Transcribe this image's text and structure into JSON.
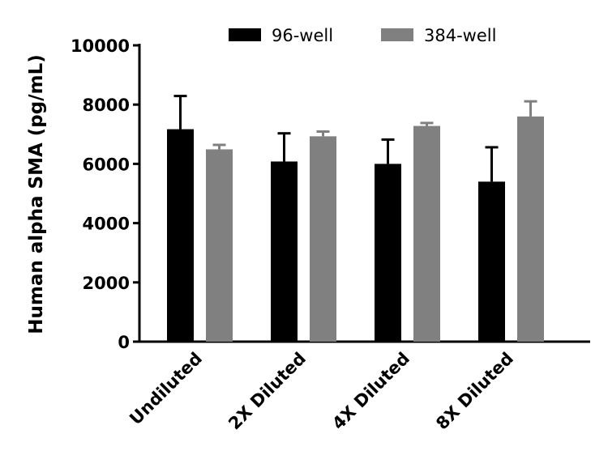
{
  "chart_data": {
    "type": "bar",
    "title": "",
    "xlabel": "",
    "ylabel": "Human alpha SMA (pg/mL)",
    "ylim": [
      0,
      10000
    ],
    "yticks": [
      "0",
      "2000",
      "4000",
      "6000",
      "8000",
      "10000"
    ],
    "categories": [
      "Undiluted",
      "2X Diluted",
      "4X Diluted",
      "8X Diluted"
    ],
    "legend_position": "top",
    "grid": false,
    "series": [
      {
        "name": "96-well",
        "color": "#000000",
        "values": [
          7170,
          6080,
          6000,
          5400
        ],
        "error_upper": [
          8290,
          7030,
          6820,
          6560
        ]
      },
      {
        "name": "384-well",
        "color": "#808080",
        "values": [
          6490,
          6930,
          7280,
          7600
        ],
        "error_upper": [
          6640,
          7090,
          7380,
          8110
        ]
      }
    ]
  }
}
